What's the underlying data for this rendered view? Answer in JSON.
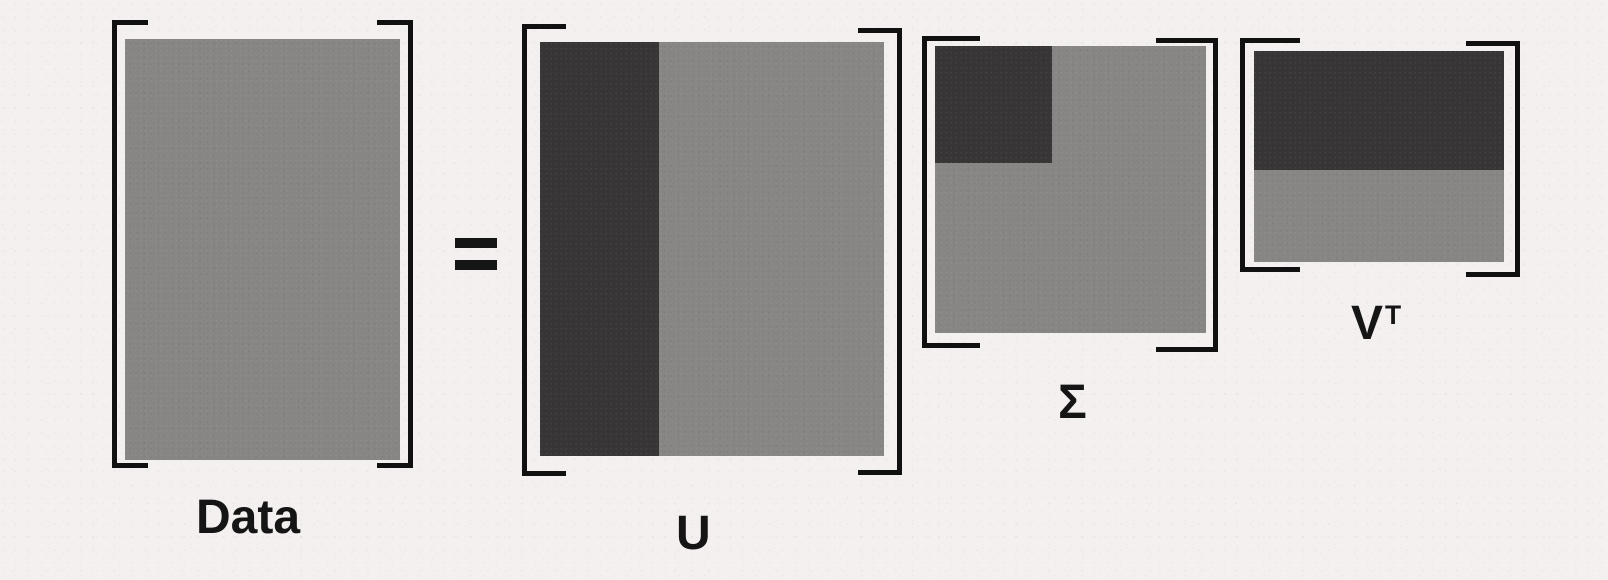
{
  "labels": {
    "data": "Data",
    "u": "U",
    "sigma": "Σ",
    "vt_main": "V",
    "vt_superscript": "T"
  },
  "colors": {
    "background": "#f3f0ef",
    "matrix_fill": "#888684",
    "highlight_fill": "#373535",
    "bracket": "#111111"
  }
}
